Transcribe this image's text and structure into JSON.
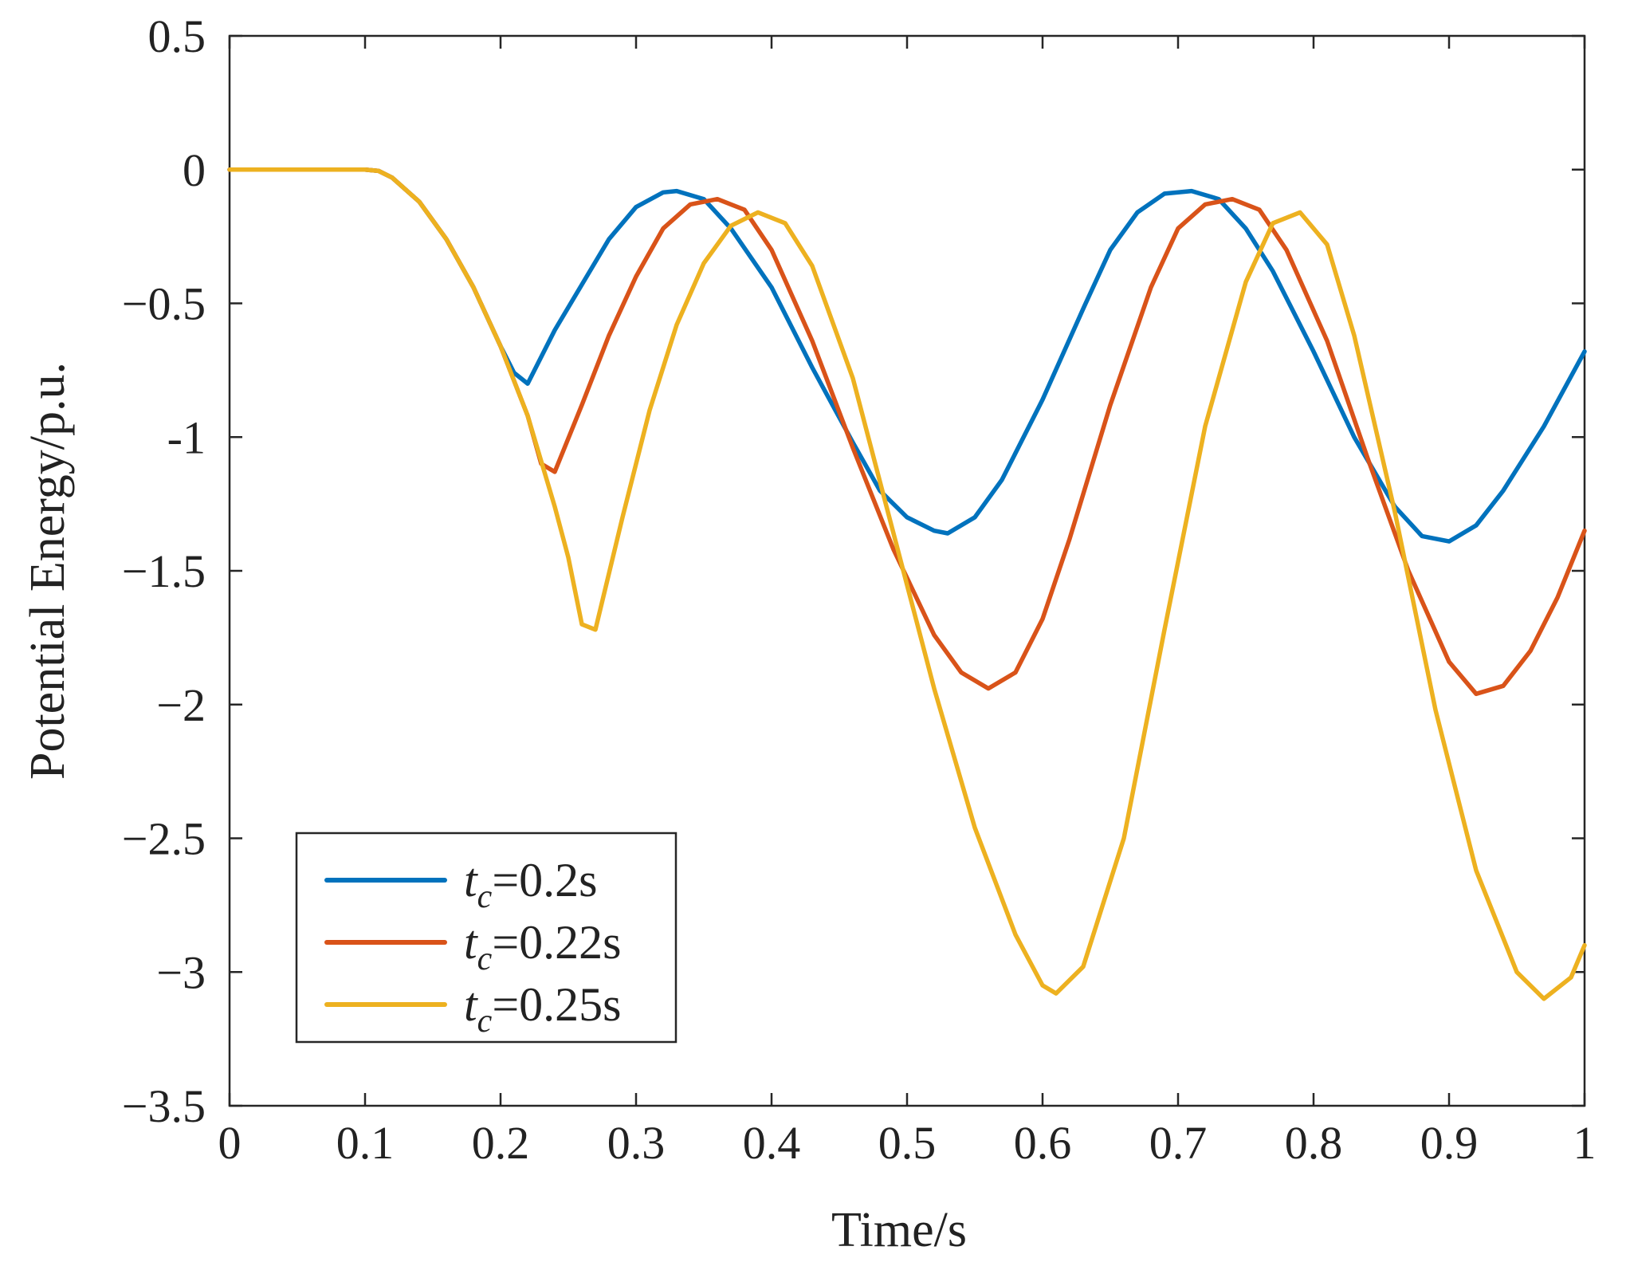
{
  "chart_data": {
    "type": "line",
    "title": "",
    "xlabel": "Time/s",
    "ylabel": "Potential Energy/p.u.",
    "xlim": [
      0,
      1
    ],
    "ylim": [
      -3.5,
      0.5
    ],
    "xticks": [
      0,
      0.1,
      0.2,
      0.3,
      0.4,
      0.5,
      0.6,
      0.7,
      0.8,
      0.9,
      1
    ],
    "xtick_labels": [
      "0",
      "0.1",
      "0.2",
      "0.3",
      "0.4",
      "0.5",
      "0.6",
      "0.7",
      "0.8",
      "0.9",
      "1"
    ],
    "yticks": [
      0.5,
      0,
      -0.5,
      -1,
      -1.5,
      -2,
      -2.5,
      -3,
      -3.5
    ],
    "ytick_labels": [
      "0.5",
      "0",
      "−0.5",
      "-1",
      "−1.5",
      "−2",
      "−2.5",
      "−3",
      "−3.5"
    ],
    "grid": false,
    "legend_position": "bottom-left",
    "series": [
      {
        "name": "tc=0.2s",
        "legend_main": "t",
        "legend_sub": "c",
        "legend_rest": "=0.2s",
        "color": "#0072BD",
        "points": [
          [
            0,
            0
          ],
          [
            0.1,
            0
          ],
          [
            0.11,
            -0.005
          ],
          [
            0.12,
            -0.03
          ],
          [
            0.14,
            -0.12
          ],
          [
            0.16,
            -0.26
          ],
          [
            0.18,
            -0.44
          ],
          [
            0.2,
            -0.66
          ],
          [
            0.21,
            -0.76
          ],
          [
            0.22,
            -0.8
          ],
          [
            0.24,
            -0.6
          ],
          [
            0.26,
            -0.43
          ],
          [
            0.28,
            -0.26
          ],
          [
            0.3,
            -0.14
          ],
          [
            0.32,
            -0.085
          ],
          [
            0.33,
            -0.08
          ],
          [
            0.35,
            -0.11
          ],
          [
            0.37,
            -0.22
          ],
          [
            0.4,
            -0.44
          ],
          [
            0.43,
            -0.74
          ],
          [
            0.46,
            -1.02
          ],
          [
            0.48,
            -1.2
          ],
          [
            0.5,
            -1.3
          ],
          [
            0.52,
            -1.35
          ],
          [
            0.53,
            -1.36
          ],
          [
            0.55,
            -1.3
          ],
          [
            0.57,
            -1.16
          ],
          [
            0.6,
            -0.86
          ],
          [
            0.63,
            -0.52
          ],
          [
            0.65,
            -0.3
          ],
          [
            0.67,
            -0.16
          ],
          [
            0.69,
            -0.09
          ],
          [
            0.71,
            -0.08
          ],
          [
            0.73,
            -0.11
          ],
          [
            0.75,
            -0.22
          ],
          [
            0.77,
            -0.38
          ],
          [
            0.8,
            -0.68
          ],
          [
            0.83,
            -1.0
          ],
          [
            0.86,
            -1.26
          ],
          [
            0.88,
            -1.37
          ],
          [
            0.9,
            -1.39
          ],
          [
            0.92,
            -1.33
          ],
          [
            0.94,
            -1.2
          ],
          [
            0.97,
            -0.96
          ],
          [
            1.0,
            -0.68
          ]
        ]
      },
      {
        "name": "tc=0.22s",
        "legend_main": "t",
        "legend_sub": "c",
        "legend_rest": "=0.22s",
        "color": "#D95319",
        "points": [
          [
            0,
            0
          ],
          [
            0.1,
            0
          ],
          [
            0.11,
            -0.005
          ],
          [
            0.12,
            -0.03
          ],
          [
            0.14,
            -0.12
          ],
          [
            0.16,
            -0.26
          ],
          [
            0.18,
            -0.44
          ],
          [
            0.2,
            -0.66
          ],
          [
            0.22,
            -0.92
          ],
          [
            0.23,
            -1.1
          ],
          [
            0.24,
            -1.13
          ],
          [
            0.26,
            -0.88
          ],
          [
            0.28,
            -0.62
          ],
          [
            0.3,
            -0.4
          ],
          [
            0.32,
            -0.22
          ],
          [
            0.34,
            -0.13
          ],
          [
            0.36,
            -0.11
          ],
          [
            0.38,
            -0.15
          ],
          [
            0.4,
            -0.3
          ],
          [
            0.43,
            -0.64
          ],
          [
            0.46,
            -1.04
          ],
          [
            0.49,
            -1.42
          ],
          [
            0.52,
            -1.74
          ],
          [
            0.54,
            -1.88
          ],
          [
            0.56,
            -1.94
          ],
          [
            0.58,
            -1.88
          ],
          [
            0.6,
            -1.68
          ],
          [
            0.62,
            -1.38
          ],
          [
            0.65,
            -0.88
          ],
          [
            0.68,
            -0.44
          ],
          [
            0.7,
            -0.22
          ],
          [
            0.72,
            -0.13
          ],
          [
            0.74,
            -0.11
          ],
          [
            0.76,
            -0.15
          ],
          [
            0.78,
            -0.3
          ],
          [
            0.81,
            -0.64
          ],
          [
            0.84,
            -1.08
          ],
          [
            0.87,
            -1.5
          ],
          [
            0.9,
            -1.84
          ],
          [
            0.92,
            -1.96
          ],
          [
            0.94,
            -1.93
          ],
          [
            0.96,
            -1.8
          ],
          [
            0.98,
            -1.6
          ],
          [
            1.0,
            -1.35
          ]
        ]
      },
      {
        "name": "tc=0.25s",
        "legend_main": "t",
        "legend_sub": "c",
        "legend_rest": "=0.25s",
        "color": "#EDB120",
        "points": [
          [
            0,
            0
          ],
          [
            0.1,
            0
          ],
          [
            0.11,
            -0.005
          ],
          [
            0.12,
            -0.03
          ],
          [
            0.14,
            -0.12
          ],
          [
            0.16,
            -0.26
          ],
          [
            0.18,
            -0.44
          ],
          [
            0.2,
            -0.66
          ],
          [
            0.22,
            -0.92
          ],
          [
            0.24,
            -1.26
          ],
          [
            0.25,
            -1.45
          ],
          [
            0.26,
            -1.7
          ],
          [
            0.27,
            -1.72
          ],
          [
            0.29,
            -1.3
          ],
          [
            0.31,
            -0.9
          ],
          [
            0.33,
            -0.58
          ],
          [
            0.35,
            -0.35
          ],
          [
            0.37,
            -0.21
          ],
          [
            0.39,
            -0.16
          ],
          [
            0.41,
            -0.2
          ],
          [
            0.43,
            -0.36
          ],
          [
            0.46,
            -0.78
          ],
          [
            0.49,
            -1.36
          ],
          [
            0.52,
            -1.94
          ],
          [
            0.55,
            -2.46
          ],
          [
            0.58,
            -2.86
          ],
          [
            0.6,
            -3.05
          ],
          [
            0.61,
            -3.08
          ],
          [
            0.63,
            -2.98
          ],
          [
            0.66,
            -2.5
          ],
          [
            0.69,
            -1.72
          ],
          [
            0.72,
            -0.96
          ],
          [
            0.75,
            -0.42
          ],
          [
            0.77,
            -0.2
          ],
          [
            0.79,
            -0.16
          ],
          [
            0.81,
            -0.28
          ],
          [
            0.83,
            -0.62
          ],
          [
            0.86,
            -1.28
          ],
          [
            0.89,
            -2.02
          ],
          [
            0.92,
            -2.62
          ],
          [
            0.95,
            -3.0
          ],
          [
            0.97,
            -3.1
          ],
          [
            0.99,
            -3.02
          ],
          [
            1.0,
            -2.9
          ]
        ]
      }
    ]
  }
}
